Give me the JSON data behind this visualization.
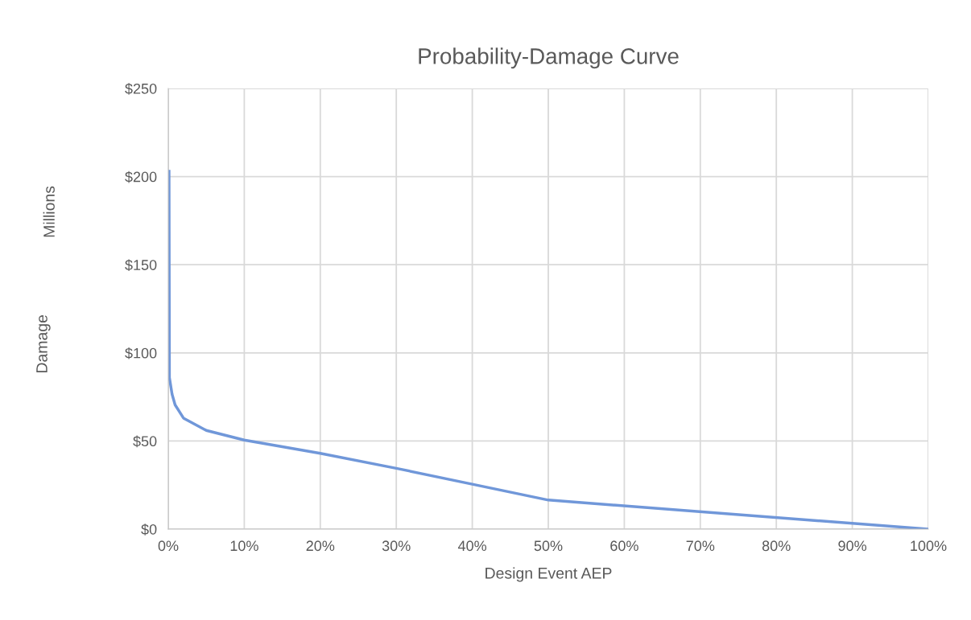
{
  "chart_data": {
    "type": "line",
    "title": "Probability-Damage Curve",
    "xlabel": "Design Event AEP",
    "ylabel": "Damage",
    "annotations": [
      "Millions"
    ],
    "x": [
      0.1,
      0.15,
      0.5,
      0.9,
      2,
      5,
      10,
      20,
      30,
      40,
      50,
      100
    ],
    "series": [
      {
        "color": "#7097d9",
        "values": [
          203,
          86,
          76.5,
          70.5,
          63,
          56,
          50.5,
          43,
          34.5,
          25.5,
          16.5,
          0
        ]
      }
    ],
    "xlim": [
      0,
      100
    ],
    "xticks": [
      {
        "value": 0,
        "label": "0%"
      },
      {
        "value": 10,
        "label": "10%"
      },
      {
        "value": 20,
        "label": "20%"
      },
      {
        "value": 30,
        "label": "30%"
      },
      {
        "value": 40,
        "label": "40%"
      },
      {
        "value": 50,
        "label": "50%"
      },
      {
        "value": 60,
        "label": "60%"
      },
      {
        "value": 70,
        "label": "70%"
      },
      {
        "value": 80,
        "label": "80%"
      },
      {
        "value": 90,
        "label": "90%"
      },
      {
        "value": 100,
        "label": "100%"
      }
    ],
    "ylim": [
      0,
      250
    ],
    "yticks": [
      {
        "value": 0,
        "label": "$0"
      },
      {
        "value": 50,
        "label": "$50"
      },
      {
        "value": 100,
        "label": "$100"
      },
      {
        "value": 150,
        "label": "$150"
      },
      {
        "value": 200,
        "label": "$200"
      },
      {
        "value": 250,
        "label": "$250"
      }
    ],
    "grid": true,
    "legend": false,
    "marker": "none",
    "line_style": "solid"
  }
}
